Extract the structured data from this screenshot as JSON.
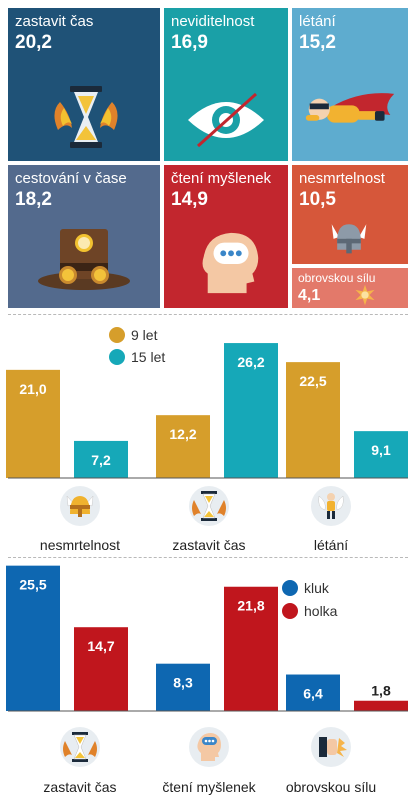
{
  "colors": {
    "navy": "#1f5277",
    "teal": "#1aa0a7",
    "lightblue": "#5eaccf",
    "slate": "#536a8d",
    "red": "#c2262e",
    "orange": "#d6573a",
    "salmon": "#e3796a",
    "gold": "#d69e2b",
    "cyan": "#16a8b8",
    "blue": "#0e67b1",
    "darkred": "#c0161d"
  },
  "tiles": [
    {
      "name": "zastavit čas",
      "value": "20,2",
      "icon": "hourglass-icon"
    },
    {
      "name": "neviditelnost",
      "value": "16,9",
      "icon": "eye-crossed-icon"
    },
    {
      "name": "létání",
      "value": "15,2",
      "icon": "flying-hero-icon"
    },
    {
      "name": "cestování v čase",
      "value": "18,2",
      "icon": "steampunk-hat-icon"
    },
    {
      "name": "čtení myšlenek",
      "value": "14,9",
      "icon": "head-thought-icon"
    },
    {
      "name": "nesmrtelnost",
      "value": "10,5",
      "icon": "viking-helmet-icon"
    },
    {
      "name": "obrovskou sílu",
      "value": "4,1",
      "icon": "fist-burst-icon"
    }
  ],
  "chart_data": [
    {
      "type": "bar",
      "categories": [
        "nesmrtelnost",
        "zastavit čas",
        "létání"
      ],
      "series": [
        {
          "name": "9 let",
          "values": [
            21.0,
            12.2,
            22.5
          ],
          "labels": [
            "21,0",
            "12,2",
            "22,5"
          ],
          "color": "#d69e2b"
        },
        {
          "name": "15 let",
          "values": [
            7.2,
            26.2,
            9.1
          ],
          "labels": [
            "7,2",
            "26,2",
            "9,1"
          ],
          "color": "#16a8b8"
        }
      ],
      "legend_position": "top-left",
      "category_icons": [
        "viking-helmet-icon",
        "hourglass-icon",
        "flying-hero-icon"
      ]
    },
    {
      "type": "bar",
      "categories": [
        "zastavit čas",
        "čtení myšlenek",
        "obrovskou sílu"
      ],
      "series": [
        {
          "name": "kluk",
          "values": [
            25.5,
            8.3,
            6.4
          ],
          "labels": [
            "25,5",
            "8,3",
            "6,4"
          ],
          "color": "#0e67b1"
        },
        {
          "name": "holka",
          "values": [
            14.7,
            21.8,
            1.8
          ],
          "labels": [
            "14,7",
            "21,8",
            "1,8"
          ],
          "color": "#c0161d"
        }
      ],
      "legend_position": "top-right",
      "category_icons": [
        "hourglass-icon",
        "head-thought-icon",
        "fist-burst-icon"
      ]
    }
  ]
}
